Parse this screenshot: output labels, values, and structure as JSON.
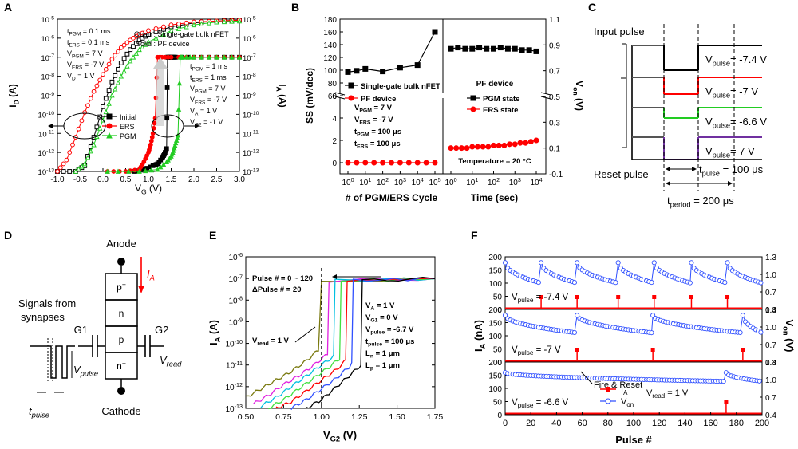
{
  "colors": {
    "black": "#000000",
    "red": "#ff0000",
    "green": "#22cc22",
    "blue": "#3050ff",
    "purple": "#7030a0",
    "gray": "#999999",
    "pink": "#e06060",
    "olive": "#7a7a10",
    "cyan": "#00c0e0",
    "magenta": "#e020e0",
    "lightgreen": "#40e040"
  },
  "panels": {
    "a": "A",
    "b": "B",
    "c": "C",
    "d": "D",
    "e": "E",
    "f": "F"
  },
  "chart_data": [
    {
      "id": "A",
      "type": "line",
      "xlabel": "V_G (V)",
      "ylabel_left": "I_D (A)",
      "ylabel_right": "I_A (A)",
      "xlim": [
        -1.0,
        3.0
      ],
      "ylim_exp": [
        -13,
        -5
      ],
      "x_ticks": [
        "-1.0",
        "-0.5",
        "0.0",
        "0.5",
        "1.0",
        "1.5",
        "2.0",
        "2.5",
        "3.0"
      ],
      "y_ticks": [
        "10^-13",
        "10^-12",
        "10^-11",
        "10^-10",
        "10^-9",
        "10^-8",
        "10^-7",
        "10^-6",
        "10^-5"
      ],
      "legend_note": "Open : Single-gate bulk nFET, Solid : PF device",
      "left_params": [
        "t_PGM = 0.1 ms",
        "t_ERS = 0.1 ms",
        "V_PGM = 7 V",
        "V_ERS = -7 V",
        "V_D = 1 V"
      ],
      "right_params": [
        "t_PGM = 1 ms",
        "t_ERS = 1 ms",
        "V_PGM = 7 V",
        "V_ERS = -7 V",
        "V_A = 1 V",
        "V_G2 = -1 V"
      ],
      "legend": [
        "Initial",
        "ERS",
        "PGM"
      ],
      "series": [
        {
          "name": "Initial (nFET)",
          "style": "open-square",
          "color": "black",
          "x": [
            -1.0,
            -0.6,
            -0.4,
            -0.2,
            0.0,
            0.2,
            0.4,
            0.6,
            0.8,
            1.0,
            1.5,
            2.0,
            2.5,
            3.0
          ],
          "y": [
            -13,
            -13,
            -12.7,
            -11.2,
            -9.6,
            -8.3,
            -7.3,
            -6.6,
            -6.1,
            -5.8,
            -5.4,
            -5.2,
            -5.1,
            -5.05
          ]
        },
        {
          "name": "ERS (nFET)",
          "style": "open-circle",
          "color": "red",
          "x": [
            -1.0,
            -0.8,
            -0.6,
            -0.4,
            -0.2,
            0.0,
            0.2,
            0.4,
            0.6,
            0.8,
            1.0,
            1.5,
            2.0,
            2.5,
            3.0
          ],
          "y": [
            -13,
            -12.4,
            -11.2,
            -9.9,
            -8.8,
            -7.9,
            -7.1,
            -6.5,
            -6.1,
            -5.8,
            -5.6,
            -5.3,
            -5.15,
            -5.1,
            -5.05
          ]
        },
        {
          "name": "PGM (nFET)",
          "style": "open-triangle",
          "color": "green",
          "x": [
            -0.6,
            -0.4,
            -0.2,
            0.0,
            0.2,
            0.4,
            0.6,
            0.8,
            1.0,
            1.5,
            2.0,
            2.5,
            3.0
          ],
          "y": [
            -13,
            -12.6,
            -11.6,
            -10.3,
            -9.0,
            -8.0,
            -7.2,
            -6.6,
            -6.2,
            -5.6,
            -5.3,
            -5.15,
            -5.1
          ]
        },
        {
          "name": "Initial (PF)",
          "style": "filled-square",
          "color": "black",
          "x": [
            0.7,
            0.9,
            1.1,
            1.2,
            1.3,
            1.35,
            1.4,
            1.42,
            1.45,
            1.5,
            1.55,
            1.6,
            2.0,
            2.5,
            3.0
          ],
          "y": [
            -13,
            -12.9,
            -12.7,
            -12.6,
            -12.3,
            -12.1,
            -11.8,
            -7.0,
            -7.0,
            -7.0,
            -7.0,
            -7.0,
            -7.0,
            -7.0,
            -7.0
          ]
        },
        {
          "name": "ERS (PF)",
          "style": "filled-circle",
          "color": "red",
          "x": [
            0.1,
            0.5,
            0.8,
            0.9,
            1.0,
            1.05,
            1.1,
            1.15,
            1.2,
            1.3,
            1.5,
            2.0,
            2.5,
            3.0
          ],
          "y": [
            -13,
            -13,
            -12.9,
            -12.5,
            -12.0,
            -11.6,
            -11.0,
            -10.2,
            -7.0,
            -7.0,
            -7.0,
            -7.0,
            -7.0,
            -7.0
          ]
        },
        {
          "name": "PGM (PF)",
          "style": "filled-triangle",
          "color": "green",
          "x": [
            0.1,
            0.8,
            1.2,
            1.4,
            1.5,
            1.55,
            1.6,
            1.65,
            1.7,
            1.75,
            2.0,
            2.5,
            3.0
          ],
          "y": [
            -13,
            -13,
            -12.9,
            -12.5,
            -12.2,
            -11.9,
            -11.5,
            -11.1,
            -7.0,
            -7.0,
            -7.0,
            -7.0,
            -7.0
          ]
        }
      ]
    },
    {
      "id": "B",
      "type": "scatter",
      "ylabel_left": "SS (mV/dec)",
      "ylabel_right": "V_on (V)",
      "left_panel": {
        "xlabel": "# of PGM/ERS Cycle",
        "x_ticks": [
          "10^0",
          "10^1",
          "10^2",
          "10^3",
          "10^4",
          "10^5"
        ],
        "y_ticks_top": [
          "80",
          "100",
          "120",
          "140",
          "160",
          "180"
        ],
        "y_ticks_bottom": [
          "0",
          "2",
          "4",
          "6"
        ],
        "legend": [
          "Single-gate bulk nFET",
          "PF device"
        ],
        "params": [
          "V_PGM = 7 V",
          "V_ERS = -7 V",
          "t_PGM = 100 μs",
          "t_ERS = 100 μs"
        ],
        "series": [
          {
            "name": "Single-gate bulk nFET",
            "color": "black",
            "x_log": [
              0,
              0.5,
              1,
              2,
              3,
              4,
              5
            ],
            "y": [
              97,
              99,
              102,
              98,
              104,
              108,
              160
            ]
          },
          {
            "name": "PF device",
            "color": "red",
            "x_log": [
              0,
              0.5,
              1,
              1.5,
              2,
              2.5,
              3,
              3.5,
              4,
              4.5,
              5
            ],
            "y": [
              0,
              0,
              0,
              0,
              0,
              0,
              0,
              0,
              0,
              0,
              0
            ]
          }
        ]
      },
      "right_panel": {
        "xlabel": "Time (sec)",
        "x_ticks": [
          "10^0",
          "10^1",
          "10^2",
          "10^3",
          "10^4"
        ],
        "y_ticks": [
          "-0.1",
          "0.1",
          "0.3",
          "0.5",
          "0.7",
          "0.9",
          "1.1"
        ],
        "title": "PF device",
        "legend": [
          "PGM state",
          "ERS state"
        ],
        "note": "Temperature = 20 °C",
        "series": [
          {
            "name": "PGM state",
            "color": "black",
            "x_log": [
              0,
              0.33,
              0.67,
              1,
              1.33,
              1.67,
              2,
              2.33,
              2.67,
              3,
              3.33,
              3.67,
              4
            ],
            "y": [
              0.87,
              0.88,
              0.87,
              0.87,
              0.88,
              0.87,
              0.87,
              0.88,
              0.87,
              0.87,
              0.86,
              0.86,
              0.85
            ]
          },
          {
            "name": "ERS state",
            "color": "red",
            "x_log": [
              0,
              0.25,
              0.5,
              0.75,
              1,
              1.25,
              1.5,
              1.75,
              2,
              2.25,
              2.5,
              2.75,
              3,
              3.25,
              3.5,
              3.75,
              4
            ],
            "y": [
              0.1,
              0.1,
              0.1,
              0.1,
              0.11,
              0.11,
              0.11,
              0.11,
              0.12,
              0.12,
              0.12,
              0.13,
              0.13,
              0.14,
              0.14,
              0.15,
              0.16
            ]
          }
        ]
      }
    },
    {
      "id": "C",
      "type": "diagram",
      "input_label": "Input pulse",
      "reset_label": "Reset pulse",
      "pulses": [
        {
          "label": "V_pulse= -7.4 V",
          "color": "black"
        },
        {
          "label": "V_pulse= -7 V",
          "color": "red"
        },
        {
          "label": "V_pulse= -6.6 V",
          "color": "green"
        },
        {
          "label": "V_pulse= 7 V",
          "color": "purple"
        }
      ],
      "tpulse": "t_pulse = 100 μs",
      "tperiod": "t_period = 200 μs"
    },
    {
      "id": "D",
      "type": "diagram",
      "anode": "Anode",
      "cathode": "Cathode",
      "current": "I_A",
      "regions": [
        "p+",
        "n",
        "p",
        "n+"
      ],
      "g1": "G1",
      "g2": "G2",
      "signals": "Signals from synapses",
      "vpulse": "V_pulse",
      "vread": "V_read",
      "tpulse": "t_pulse"
    },
    {
      "id": "E",
      "type": "line",
      "xlabel": "V_G2 (V)",
      "ylabel": "I_A (A)",
      "xlim": [
        0.5,
        1.75
      ],
      "ylim_exp": [
        -13,
        -6
      ],
      "x_ticks": [
        "0.50",
        "0.75",
        "1.00",
        "1.25",
        "1.50",
        "1.75"
      ],
      "y_ticks": [
        "10^-13",
        "10^-12",
        "10^-11",
        "10^-10",
        "10^-9",
        "10^-8",
        "10^-7",
        "10^-6"
      ],
      "annotations": [
        "Pulse # = 0 ~ 120",
        "ΔPulse # = 20",
        "V_read = 1 V"
      ],
      "params": [
        "V_A = 1 V",
        "V_G1 = 0 V",
        "V_pulse = -6.7 V",
        "t_pulse = 100 μs",
        "L_n = 1 μm",
        "L_p = 1 μm"
      ],
      "series": [
        {
          "name": "Pulse 0",
          "color": "olive",
          "x": [
            0.5,
            0.6,
            0.7,
            0.8,
            0.9,
            0.98,
            1.0,
            1.75
          ],
          "y": [
            -12.5,
            -12.1,
            -11.7,
            -11.3,
            -10.8,
            -10.3,
            -7.1,
            -7.0
          ]
        },
        {
          "name": "Pulse 20",
          "color": "magenta",
          "x": [
            0.55,
            0.65,
            0.75,
            0.85,
            0.95,
            1.04,
            1.05,
            1.75
          ],
          "y": [
            -12.8,
            -12.4,
            -11.9,
            -11.5,
            -11.0,
            -10.5,
            -7.1,
            -7.0
          ]
        },
        {
          "name": "Pulse 40",
          "color": "cyan",
          "x": [
            0.6,
            0.7,
            0.8,
            0.9,
            1.0,
            1.08,
            1.09,
            1.75
          ],
          "y": [
            -12.9,
            -12.5,
            -12.0,
            -11.5,
            -11.0,
            -10.6,
            -7.1,
            -7.0
          ]
        },
        {
          "name": "Pulse 60",
          "color": "lightgreen",
          "x": [
            0.65,
            0.75,
            0.85,
            0.95,
            1.05,
            1.12,
            1.13,
            1.75
          ],
          "y": [
            -13.0,
            -12.6,
            -12.1,
            -11.6,
            -11.1,
            -10.7,
            -7.1,
            -7.0
          ]
        },
        {
          "name": "Pulse 80",
          "color": "red",
          "x": [
            0.7,
            0.8,
            0.9,
            1.0,
            1.1,
            1.16,
            1.17,
            1.75
          ],
          "y": [
            -13.0,
            -12.7,
            -12.2,
            -11.7,
            -11.2,
            -10.8,
            -7.1,
            -7.0
          ]
        },
        {
          "name": "Pulse 100",
          "color": "blue",
          "x": [
            0.8,
            0.9,
            1.0,
            1.1,
            1.18,
            1.2,
            1.21,
            1.75
          ],
          "y": [
            -13.0,
            -12.6,
            -12.1,
            -11.6,
            -11.1,
            -10.9,
            -7.1,
            -7.0
          ]
        },
        {
          "name": "Pulse 120",
          "color": "black",
          "x": [
            0.9,
            1.0,
            1.1,
            1.2,
            1.26,
            1.27,
            1.75
          ],
          "y": [
            -13.0,
            -12.6,
            -12.0,
            -11.4,
            -11.0,
            -7.1,
            -7.0
          ]
        }
      ]
    },
    {
      "id": "F",
      "type": "line",
      "xlabel": "Pulse #",
      "ylabel_left": "I_A (nA)",
      "ylabel_right": "V_on (V)",
      "x_ticks": [
        "0",
        "20",
        "40",
        "60",
        "80",
        "100",
        "120",
        "140",
        "160",
        "180",
        "200"
      ],
      "y_ticks_left": [
        "0",
        "50",
        "100",
        "150",
        "200"
      ],
      "y_ticks_right": [
        "0.4",
        "0.7",
        "1.0",
        "1.3"
      ],
      "legend": [
        "I_A",
        "V_on"
      ],
      "read_note": "V_read = 1 V",
      "fire_note": "Fire & Reset",
      "subplots": [
        {
          "label": "V_pulse = -7.4 V",
          "fires": [
            28,
            56,
            88,
            116,
            145,
            173
          ],
          "von_start": 1.2,
          "von_end": 0.85
        },
        {
          "label": "V_pulse = -7 V",
          "fires": [
            56,
            115,
            185
          ],
          "von_start": 1.2,
          "von_end": 0.9
        },
        {
          "label": "V_pulse = -6.6 V",
          "fires": [
            172
          ],
          "von_start": 1.12,
          "von_end": 0.97
        }
      ]
    }
  ],
  "texts": {
    "a_note1": "Open : Single-gate bulk nFET",
    "a_note2": "Solid : PF device",
    "a_ylabel": "I_D (A)",
    "a_ylabel2": "I_A (A)",
    "a_xlabel": "V_G (V)",
    "b_ylabel": "SS (mV/dec)",
    "b_xlabel1": "# of PGM/ERS Cycle",
    "b_xlabel2": "Time (sec)",
    "e_xlabel": "V_G2 (V)",
    "f_xlabel": "Pulse #"
  }
}
